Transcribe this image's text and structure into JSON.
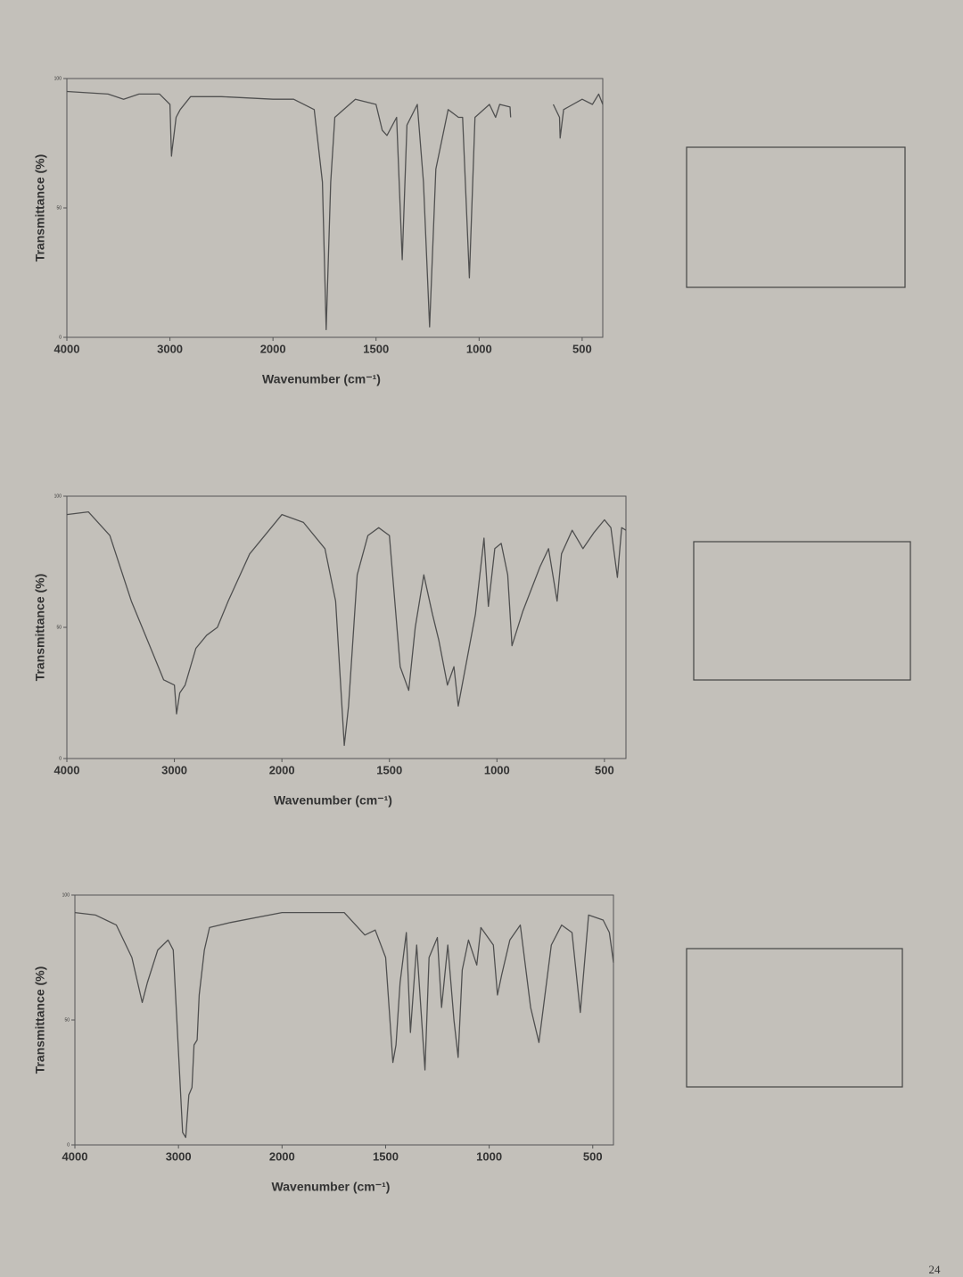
{
  "chart_data": [
    {
      "type": "line",
      "xlabel": "Wavenumber (cm⁻¹)",
      "ylabel": "Transmittance (%)",
      "xlim": [
        4000,
        400
      ],
      "xticks": [
        4000,
        3000,
        2000,
        1500,
        1000,
        500
      ],
      "x_scale_change": {
        "at": 2000,
        "factor": 2
      },
      "ylim": [
        0,
        100
      ],
      "yticks": [
        0,
        50,
        100
      ],
      "series": [
        {
          "color": "#505050",
          "x": [
            4000,
            3600,
            3450,
            3300,
            3100,
            3000,
            2985,
            2980,
            2940,
            2900,
            2800,
            2500,
            2000,
            1900,
            1800,
            1760,
            1742,
            1720,
            1700,
            1600,
            1500,
            1470,
            1447,
            1400,
            1373,
            1350,
            1300,
            1270,
            1240,
            1210,
            1150,
            1100,
            1080,
            1047,
            1020,
            950,
            920,
            900,
            850,
            847,
            800,
            640,
            610,
            607,
            590,
            500,
            450,
            420,
            400
          ],
          "values": [
            95,
            94,
            92,
            94,
            94,
            90,
            70,
            72,
            85,
            88,
            93,
            93,
            92,
            92,
            88,
            60,
            3,
            60,
            85,
            92,
            90,
            80,
            78,
            85,
            30,
            82,
            90,
            60,
            4,
            65,
            88,
            85,
            85,
            23,
            85,
            90,
            85,
            90,
            89,
            85,
            null,
            90,
            85,
            77,
            88,
            92,
            90,
            94,
            90
          ]
        }
      ]
    },
    {
      "type": "line",
      "xlabel": "Wavenumber (cm⁻¹)",
      "ylabel": "Transmittance (%)",
      "xlim": [
        4000,
        400
      ],
      "xticks": [
        4000,
        3000,
        2000,
        1500,
        1000,
        500
      ],
      "x_scale_change": {
        "at": 2000,
        "factor": 2
      },
      "ylim": [
        0,
        100
      ],
      "yticks": [
        0,
        50,
        100
      ],
      "series": [
        {
          "color": "#505050",
          "x": [
            4000,
            3800,
            3600,
            3400,
            3200,
            3100,
            3000,
            2980,
            2950,
            2900,
            2800,
            2700,
            2600,
            2500,
            2300,
            2100,
            2000,
            1900,
            1800,
            1750,
            1710,
            1690,
            1650,
            1600,
            1550,
            1500,
            1450,
            1410,
            1380,
            1340,
            1300,
            1270,
            1230,
            1200,
            1180,
            1100,
            1060,
            1040,
            1010,
            980,
            950,
            930,
            880,
            800,
            760,
            720,
            700,
            650,
            600,
            550,
            500,
            470,
            440,
            420,
            400
          ],
          "values": [
            93,
            94,
            85,
            60,
            40,
            30,
            28,
            17,
            25,
            28,
            42,
            47,
            50,
            60,
            78,
            88,
            93,
            90,
            80,
            60,
            5,
            20,
            70,
            85,
            88,
            85,
            35,
            26,
            50,
            70,
            55,
            45,
            28,
            35,
            20,
            55,
            84,
            58,
            80,
            82,
            70,
            43,
            56,
            73,
            80,
            60,
            78,
            87,
            80,
            86,
            91,
            88,
            69,
            88,
            87
          ]
        }
      ]
    },
    {
      "type": "line",
      "xlabel": "Wavenumber (cm⁻¹)",
      "ylabel": "Transmittance (%)",
      "xlim": [
        4000,
        400
      ],
      "xticks": [
        4000,
        3000,
        2000,
        1500,
        1000,
        500
      ],
      "x_scale_change": {
        "at": 2000,
        "factor": 2
      },
      "ylim": [
        0,
        100
      ],
      "yticks": [
        0,
        50,
        100
      ],
      "series": [
        {
          "color": "#505050",
          "x": [
            4000,
            3800,
            3600,
            3450,
            3350,
            3300,
            3200,
            3100,
            3050,
            2960,
            2930,
            2900,
            2870,
            2850,
            2820,
            2800,
            2750,
            2700,
            2500,
            2000,
            1700,
            1600,
            1550,
            1500,
            1465,
            1450,
            1430,
            1400,
            1380,
            1350,
            1310,
            1290,
            1250,
            1230,
            1200,
            1170,
            1150,
            1130,
            1100,
            1060,
            1040,
            980,
            960,
            940,
            900,
            850,
            800,
            760,
            700,
            650,
            600,
            560,
            520,
            450,
            420,
            400
          ],
          "values": [
            93,
            92,
            88,
            75,
            57,
            65,
            78,
            82,
            78,
            5,
            3,
            20,
            23,
            40,
            42,
            60,
            78,
            87,
            89,
            93,
            93,
            84,
            86,
            75,
            33,
            40,
            65,
            85,
            45,
            80,
            30,
            75,
            83,
            55,
            80,
            50,
            35,
            70,
            82,
            72,
            87,
            80,
            60,
            68,
            82,
            88,
            55,
            41,
            80,
            88,
            85,
            53,
            92,
            90,
            85,
            73
          ]
        }
      ]
    }
  ],
  "page_number": "24"
}
